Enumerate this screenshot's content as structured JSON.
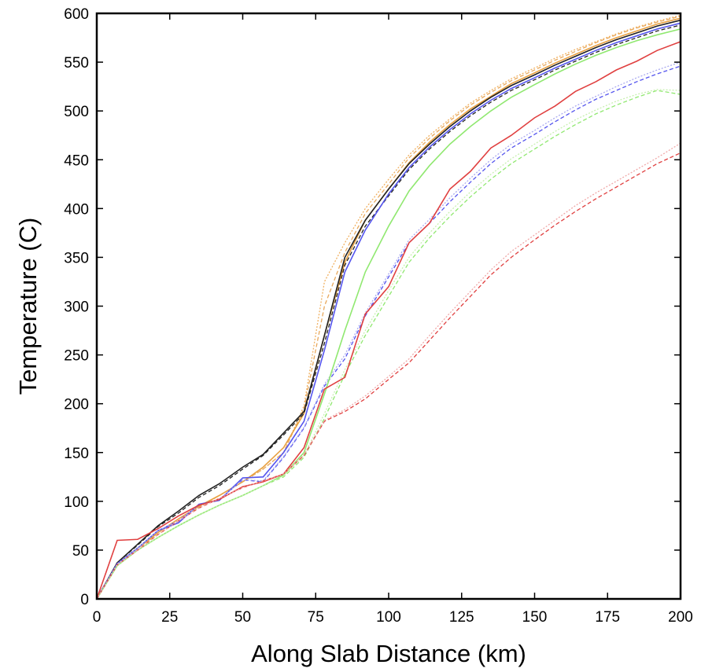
{
  "chart_data": {
    "type": "line",
    "title": "",
    "xlabel": "Along Slab Distance (km)",
    "ylabel": "Temperature (C)",
    "xlim": [
      0,
      200
    ],
    "ylim": [
      0,
      600
    ],
    "xticks": [
      0,
      25,
      50,
      75,
      100,
      125,
      150,
      175,
      200
    ],
    "yticks": [
      0,
      50,
      100,
      150,
      200,
      250,
      300,
      350,
      400,
      450,
      500,
      550,
      600
    ],
    "grid": false,
    "legend": "none",
    "series": [
      {
        "color": "#f0b060",
        "dash": "dotted",
        "x": [
          0,
          7,
          14,
          21,
          28,
          35,
          42,
          50,
          57,
          64,
          71,
          78,
          85,
          92,
          100,
          107,
          114,
          121,
          128,
          135,
          142,
          150,
          157,
          164,
          171,
          178,
          185,
          192,
          200
        ],
        "y": [
          0,
          36,
          52,
          66,
          80,
          94,
          106,
          120,
          133,
          150,
          198,
          325,
          365,
          400,
          430,
          455,
          475,
          492,
          508,
          521,
          533,
          544,
          554,
          563,
          571,
          579,
          586,
          592,
          598
        ]
      },
      {
        "color": "#e8a85c",
        "dash": "dashed",
        "x": [
          0,
          7,
          14,
          21,
          28,
          35,
          42,
          50,
          57,
          64,
          71,
          78,
          85,
          92,
          100,
          107,
          114,
          121,
          128,
          135,
          142,
          150,
          157,
          164,
          171,
          178,
          185,
          192,
          200
        ],
        "y": [
          0,
          36,
          52,
          66,
          80,
          94,
          106,
          120,
          133,
          150,
          195,
          300,
          355,
          395,
          425,
          452,
          472,
          490,
          506,
          519,
          531,
          542,
          552,
          561,
          570,
          578,
          585,
          591,
          597
        ]
      },
      {
        "color": "#e8a040",
        "dash": "solid",
        "x": [
          0,
          7,
          14,
          21,
          28,
          35,
          42,
          50,
          57,
          64,
          71,
          78,
          85,
          92,
          100,
          107,
          114,
          121,
          128,
          135,
          142,
          150,
          157,
          164,
          171,
          178,
          185,
          192,
          200
        ],
        "y": [
          0,
          36,
          52,
          68,
          82,
          95,
          106,
          120,
          135,
          155,
          190,
          270,
          345,
          388,
          420,
          447,
          468,
          486,
          502,
          515,
          528,
          539,
          549,
          558,
          567,
          575,
          582,
          589,
          595
        ]
      },
      {
        "color": "#222222",
        "dash": "solid",
        "x": [
          0,
          7,
          14,
          21,
          28,
          35,
          42,
          50,
          57,
          64,
          71,
          78,
          85,
          92,
          100,
          107,
          114,
          121,
          128,
          135,
          142,
          150,
          157,
          164,
          171,
          178,
          185,
          192,
          200
        ],
        "y": [
          0,
          37,
          56,
          75,
          90,
          106,
          118,
          135,
          148,
          170,
          192,
          270,
          350,
          388,
          420,
          446,
          466,
          484,
          500,
          514,
          526,
          537,
          547,
          556,
          565,
          573,
          580,
          587,
          593
        ]
      },
      {
        "color": "#222222",
        "dash": "dashed",
        "x": [
          0,
          7,
          14,
          21,
          28,
          35,
          42,
          50,
          57,
          64,
          71,
          78,
          85,
          92,
          100,
          107,
          114,
          121,
          128,
          135,
          142,
          150,
          157,
          164,
          171,
          178,
          185,
          192,
          200
        ],
        "y": [
          0,
          37,
          55,
          74,
          88,
          104,
          116,
          133,
          147,
          168,
          190,
          262,
          342,
          382,
          413,
          440,
          461,
          479,
          495,
          509,
          521,
          532,
          542,
          551,
          560,
          568,
          575,
          582,
          588
        ]
      },
      {
        "color": "#5555ee",
        "dash": "solid",
        "x": [
          0,
          7,
          14,
          21,
          28,
          35,
          42,
          50,
          57,
          64,
          71,
          78,
          85,
          92,
          100,
          107,
          114,
          121,
          128,
          135,
          142,
          150,
          157,
          164,
          171,
          178,
          185,
          192,
          200
        ],
        "y": [
          0,
          36,
          52,
          70,
          78,
          97,
          101,
          124,
          125,
          150,
          182,
          255,
          335,
          378,
          415,
          442,
          463,
          481,
          497,
          511,
          523,
          534,
          544,
          553,
          562,
          570,
          577,
          584,
          590
        ]
      },
      {
        "color": "#5555ee",
        "dash": "dashed",
        "x": [
          0,
          7,
          14,
          21,
          28,
          35,
          42,
          50,
          57,
          64,
          71,
          78,
          85,
          92,
          100,
          107,
          114,
          121,
          128,
          135,
          142,
          150,
          157,
          164,
          171,
          178,
          185,
          192,
          200
        ],
        "y": [
          0,
          36,
          52,
          70,
          80,
          96,
          102,
          122,
          120,
          145,
          175,
          218,
          246,
          290,
          330,
          365,
          385,
          407,
          427,
          446,
          462,
          476,
          489,
          501,
          512,
          521,
          530,
          538,
          546
        ]
      },
      {
        "color": "#aaaaf0",
        "dash": "dotted",
        "x": [
          0,
          7,
          14,
          21,
          28,
          35,
          42,
          50,
          57,
          64,
          71,
          78,
          85,
          92,
          100,
          107,
          114,
          121,
          128,
          135,
          142,
          150,
          157,
          164,
          171,
          178,
          185,
          192,
          200
        ],
        "y": [
          0,
          36,
          52,
          70,
          80,
          96,
          102,
          122,
          121,
          146,
          176,
          220,
          250,
          293,
          333,
          368,
          389,
          411,
          431,
          450,
          466,
          480,
          493,
          505,
          515,
          525,
          534,
          542,
          550
        ]
      },
      {
        "color": "#90e870",
        "dash": "solid",
        "x": [
          0,
          7,
          14,
          21,
          28,
          35,
          42,
          50,
          57,
          64,
          71,
          78,
          85,
          92,
          100,
          107,
          114,
          121,
          128,
          135,
          142,
          150,
          157,
          164,
          171,
          178,
          185,
          192,
          200
        ],
        "y": [
          0,
          34,
          50,
          63,
          75,
          86,
          96,
          106,
          116,
          127,
          150,
          210,
          275,
          335,
          382,
          418,
          444,
          466,
          484,
          500,
          514,
          527,
          538,
          548,
          557,
          565,
          572,
          578,
          584
        ]
      },
      {
        "color": "#90e870",
        "dash": "dashed",
        "x": [
          0,
          7,
          14,
          21,
          28,
          35,
          42,
          50,
          57,
          64,
          71,
          78,
          85,
          92,
          100,
          107,
          114,
          121,
          128,
          135,
          142,
          150,
          157,
          164,
          171,
          178,
          185,
          192,
          200
        ],
        "y": [
          0,
          34,
          50,
          63,
          75,
          86,
          96,
          106,
          116,
          125,
          145,
          185,
          230,
          270,
          310,
          345,
          370,
          392,
          412,
          430,
          446,
          461,
          474,
          486,
          497,
          506,
          514,
          521,
          517
        ]
      },
      {
        "color": "#c8f0b0",
        "dash": "dotted",
        "x": [
          0,
          7,
          14,
          21,
          28,
          35,
          42,
          50,
          57,
          64,
          71,
          78,
          85,
          92,
          100,
          107,
          114,
          121,
          128,
          135,
          142,
          150,
          157,
          164,
          171,
          178,
          185,
          192,
          200
        ],
        "y": [
          0,
          34,
          50,
          63,
          75,
          86,
          96,
          106,
          116,
          126,
          147,
          190,
          235,
          275,
          316,
          350,
          375,
          397,
          417,
          435,
          451,
          466,
          479,
          491,
          501,
          510,
          517,
          522,
          521
        ]
      },
      {
        "color": "#e04040",
        "dash": "solid",
        "x": [
          0,
          7,
          14,
          21,
          28,
          35,
          42,
          50,
          57,
          64,
          71,
          78,
          85,
          92,
          100,
          107,
          114,
          121,
          128,
          135,
          142,
          150,
          157,
          164,
          171,
          178,
          185,
          192,
          200
        ],
        "y": [
          0,
          60,
          61,
          72,
          85,
          96,
          102,
          115,
          120,
          128,
          155,
          215,
          227,
          292,
          320,
          365,
          385,
          420,
          438,
          462,
          475,
          493,
          505,
          520,
          530,
          542,
          551,
          562,
          571
        ]
      },
      {
        "color": "#e04040",
        "dash": "dashed",
        "x": [
          0,
          7,
          14,
          21,
          28,
          35,
          42,
          50,
          57,
          64,
          71,
          78,
          85,
          92,
          100,
          107,
          114,
          121,
          128,
          135,
          142,
          150,
          157,
          164,
          171,
          178,
          185,
          192,
          200
        ],
        "y": [
          0,
          35,
          50,
          66,
          80,
          93,
          103,
          114,
          121,
          128,
          147,
          182,
          192,
          205,
          225,
          242,
          265,
          288,
          310,
          332,
          350,
          368,
          383,
          397,
          410,
          422,
          434,
          446,
          457
        ]
      },
      {
        "color": "#f0a8a8",
        "dash": "dotted",
        "x": [
          0,
          7,
          14,
          21,
          28,
          35,
          42,
          50,
          57,
          64,
          71,
          78,
          85,
          92,
          100,
          107,
          114,
          121,
          128,
          135,
          142,
          150,
          157,
          164,
          171,
          178,
          185,
          192,
          200
        ],
        "y": [
          0,
          35,
          50,
          66,
          80,
          93,
          103,
          114,
          121,
          128,
          148,
          183,
          194,
          208,
          228,
          246,
          270,
          293,
          315,
          337,
          356,
          373,
          388,
          403,
          416,
          428,
          440,
          452,
          467
        ]
      }
    ]
  }
}
